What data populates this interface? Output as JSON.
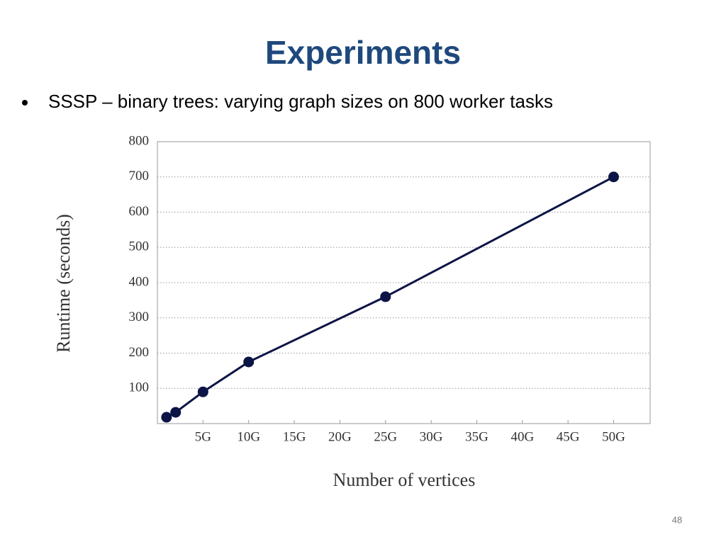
{
  "slide": {
    "title": "Experiments",
    "bullet": "SSSP – binary trees: varying graph sizes on 800 worker tasks",
    "page_number": "48"
  },
  "chart_data": {
    "type": "line",
    "xlabel": "Number of vertices",
    "ylabel": "Runtime (seconds)",
    "x": [
      1,
      2,
      5,
      10,
      25,
      50
    ],
    "values": [
      18,
      32,
      90,
      175,
      360,
      700
    ],
    "color": "#0c1446",
    "xlim": [
      0,
      54
    ],
    "ylim": [
      0,
      800
    ],
    "xticks": [
      {
        "value": 5,
        "label": "5G"
      },
      {
        "value": 10,
        "label": "10G"
      },
      {
        "value": 15,
        "label": "15G"
      },
      {
        "value": 20,
        "label": "20G"
      },
      {
        "value": 25,
        "label": "25G"
      },
      {
        "value": 30,
        "label": "30G"
      },
      {
        "value": 35,
        "label": "35G"
      },
      {
        "value": 40,
        "label": "40G"
      },
      {
        "value": 45,
        "label": "45G"
      },
      {
        "value": 50,
        "label": "50G"
      }
    ],
    "yticks": [
      100,
      200,
      300,
      400,
      500,
      600,
      700,
      800
    ],
    "grid": true
  }
}
